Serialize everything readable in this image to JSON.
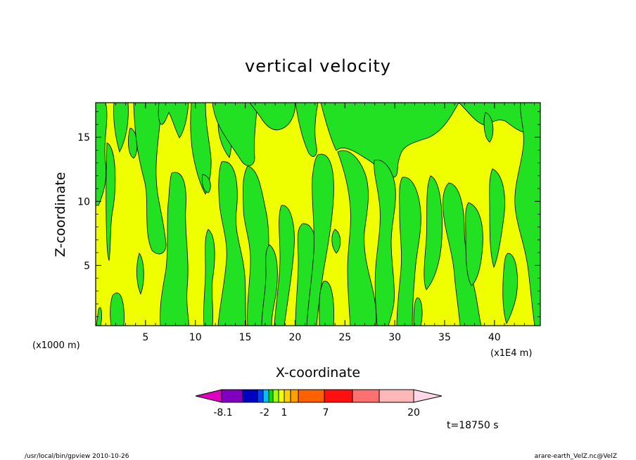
{
  "chart_data": {
    "type": "heatmap",
    "title": "vertical velocity",
    "xlabel": "X-coordinate",
    "ylabel": "Z-coordinate",
    "x_multiplier_left": "(x1000 m)",
    "x_multiplier_right": "(x1E4 m)",
    "x_ticks": [
      5,
      10,
      15,
      20,
      25,
      30,
      35,
      40
    ],
    "x_tick_labels": [
      "5",
      "10",
      "15",
      "20",
      "25",
      "30",
      "35",
      "40"
    ],
    "xlim": [
      0,
      44.6
    ],
    "y_ticks": [
      5,
      10,
      15
    ],
    "y_tick_labels": [
      "5",
      "10",
      "15"
    ],
    "ylim": [
      0.3,
      17.7
    ],
    "background_color": "#f0ff00",
    "contour_fill_color": "#22e022",
    "contour_line_color": "#000000",
    "colorbar": {
      "segments": [
        {
          "color": "#e000c0"
        },
        {
          "color": "#8000c0"
        },
        {
          "color": "#0000c0"
        },
        {
          "color": "#0040ff"
        },
        {
          "color": "#00c0ff"
        },
        {
          "color": "#00e000"
        },
        {
          "color": "#a0ff00"
        },
        {
          "color": "#f0ff00"
        },
        {
          "color": "#ffd000"
        },
        {
          "color": "#ffa000"
        },
        {
          "color": "#ff6000"
        },
        {
          "color": "#ff1010"
        },
        {
          "color": "#ff7070"
        },
        {
          "color": "#ffb8b8"
        },
        {
          "color": "#ffd8e8"
        }
      ],
      "labels": [
        "-8.1",
        "-2",
        "1",
        "7",
        "20"
      ]
    },
    "time_label": "t=18750 s"
  },
  "footer": {
    "left": "/usr/local/bin/gpview   2010-10-26",
    "right": "arare-earth_VelZ.nc@VelZ"
  }
}
